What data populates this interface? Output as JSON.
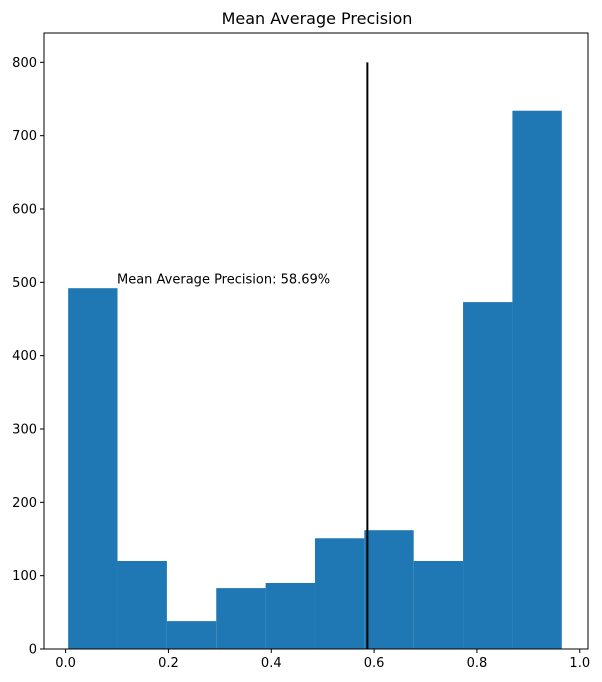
{
  "chart_data": {
    "type": "bar",
    "title": "Mean Average Precision",
    "xlabel": "",
    "ylabel": "",
    "xlim": [
      -0.042,
      1.016
    ],
    "ylim": [
      0,
      840
    ],
    "bins": [
      {
        "x0": 0.005,
        "x1": 0.101,
        "count": 492
      },
      {
        "x0": 0.101,
        "x1": 0.197,
        "count": 120
      },
      {
        "x0": 0.197,
        "x1": 0.293,
        "count": 38
      },
      {
        "x0": 0.293,
        "x1": 0.389,
        "count": 83
      },
      {
        "x0": 0.389,
        "x1": 0.485,
        "count": 90
      },
      {
        "x0": 0.485,
        "x1": 0.581,
        "count": 151
      },
      {
        "x0": 0.581,
        "x1": 0.677,
        "count": 162
      },
      {
        "x0": 0.677,
        "x1": 0.773,
        "count": 120
      },
      {
        "x0": 0.773,
        "x1": 0.869,
        "count": 473
      },
      {
        "x0": 0.869,
        "x1": 0.965,
        "count": 734
      }
    ],
    "x_ticks": [
      0.0,
      0.2,
      0.4,
      0.6,
      0.8,
      1.0
    ],
    "x_tick_labels": [
      "0.0",
      "0.2",
      "0.4",
      "0.6",
      "0.8",
      "1.0"
    ],
    "y_ticks": [
      0,
      100,
      200,
      300,
      400,
      500,
      600,
      700,
      800
    ],
    "y_tick_labels": [
      "0",
      "100",
      "200",
      "300",
      "400",
      "500",
      "600",
      "700",
      "800"
    ],
    "vline": {
      "x": 0.5869,
      "y0": 0,
      "y1": 800,
      "color": "#000000"
    },
    "annotation": {
      "text": "Mean Average Precision: 58.69%",
      "x": 0.1,
      "y": 500
    },
    "bar_color": "#1f77b4",
    "grid": false
  }
}
